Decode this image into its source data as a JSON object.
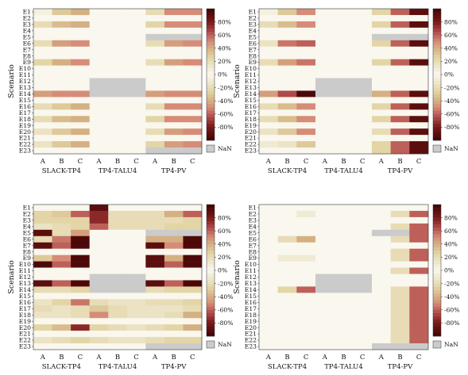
{
  "chart_data": [
    {
      "type": "heatmap",
      "ylabel": "Scenario",
      "rows": [
        "E1",
        "E2",
        "E3",
        "E4",
        "E5",
        "E6",
        "E7",
        "E8",
        "E9",
        "E10",
        "E11",
        "E12",
        "E13",
        "E14",
        "E15",
        "E16",
        "E17",
        "E18",
        "E19",
        "E20",
        "E21",
        "E22",
        "E23"
      ],
      "columns": [
        "A",
        "B",
        "C",
        "A",
        "B",
        "C",
        "A",
        "B",
        "C"
      ],
      "groups": [
        "SLACK-TP4",
        "TP4-TALU4",
        "TP4-PV"
      ],
      "colorbar": {
        "ticks": [
          "80%",
          "60%",
          "40%",
          "20%",
          "0%",
          "-20%",
          "-40%",
          "-60%",
          "-80%"
        ],
        "nan_label": "NaN",
        "range": [
          -100,
          100
        ]
      },
      "values": [
        [
          5,
          30,
          40,
          0,
          0,
          0,
          20,
          50,
          50
        ],
        [
          0,
          0,
          0,
          0,
          0,
          0,
          0,
          0,
          0
        ],
        [
          20,
          35,
          40,
          0,
          0,
          0,
          25,
          50,
          50
        ],
        [
          0,
          0,
          0,
          0,
          0,
          0,
          0,
          0,
          0
        ],
        [
          0,
          0,
          0,
          0,
          0,
          0,
          null,
          null,
          null
        ],
        [
          20,
          45,
          50,
          0,
          0,
          0,
          20,
          45,
          50
        ],
        [
          0,
          0,
          0,
          0,
          0,
          0,
          0,
          0,
          0
        ],
        [
          0,
          0,
          0,
          0,
          0,
          0,
          0,
          0,
          0
        ],
        [
          25,
          40,
          50,
          0,
          0,
          0,
          20,
          45,
          50
        ],
        [
          0,
          0,
          0,
          0,
          0,
          0,
          0,
          0,
          0
        ],
        [
          0,
          0,
          0,
          0,
          0,
          0,
          0,
          0,
          0
        ],
        [
          0,
          0,
          0,
          null,
          null,
          null,
          0,
          0,
          0
        ],
        [
          0,
          0,
          0,
          null,
          null,
          null,
          0,
          0,
          0
        ],
        [
          45,
          50,
          50,
          null,
          null,
          null,
          45,
          50,
          50
        ],
        [
          0,
          0,
          0,
          0,
          0,
          0,
          0,
          0,
          0
        ],
        [
          20,
          30,
          40,
          0,
          0,
          0,
          20,
          50,
          50
        ],
        [
          0,
          0,
          0,
          0,
          0,
          0,
          0,
          0,
          0
        ],
        [
          20,
          35,
          40,
          0,
          0,
          0,
          25,
          50,
          50
        ],
        [
          0,
          0,
          0,
          0,
          0,
          0,
          0,
          0,
          0
        ],
        [
          15,
          30,
          40,
          0,
          0,
          0,
          20,
          45,
          50
        ],
        [
          0,
          0,
          0,
          0,
          0,
          0,
          0,
          0,
          0
        ],
        [
          15,
          30,
          40,
          0,
          0,
          0,
          25,
          45,
          50
        ],
        [
          0,
          0,
          0,
          0,
          0,
          0,
          null,
          null,
          null
        ]
      ]
    },
    {
      "type": "heatmap",
      "ylabel": "Scenario",
      "rows": [
        "E1",
        "E2",
        "E3",
        "E4",
        "E5",
        "E6",
        "E7",
        "E8",
        "E9",
        "E10",
        "E11",
        "E12",
        "E13",
        "E14",
        "E15",
        "E16",
        "E17",
        "E18",
        "E19",
        "E20",
        "E21",
        "E22",
        "E23"
      ],
      "columns": [
        "A",
        "B",
        "C",
        "A",
        "B",
        "C",
        "A",
        "B",
        "C"
      ],
      "groups": [
        "SLACK-TP4",
        "TP4-TALU4",
        "TP4-PV"
      ],
      "colorbar": {
        "ticks": [
          "80%",
          "60%",
          "40%",
          "20%",
          "0%",
          "-20%",
          "-40%",
          "-60%",
          "-80%"
        ],
        "nan_label": "NaN",
        "range": [
          -100,
          100
        ]
      },
      "values": [
        [
          5,
          30,
          50,
          0,
          0,
          0,
          25,
          60,
          90
        ],
        [
          0,
          0,
          0,
          0,
          0,
          0,
          0,
          0,
          0
        ],
        [
          20,
          35,
          50,
          0,
          0,
          0,
          25,
          60,
          90
        ],
        [
          0,
          0,
          0,
          0,
          0,
          0,
          0,
          0,
          0
        ],
        [
          0,
          0,
          0,
          0,
          0,
          0,
          null,
          null,
          null
        ],
        [
          15,
          55,
          60,
          0,
          0,
          0,
          25,
          60,
          90
        ],
        [
          0,
          0,
          0,
          0,
          0,
          0,
          0,
          0,
          0
        ],
        [
          0,
          0,
          0,
          0,
          0,
          0,
          0,
          0,
          0
        ],
        [
          20,
          45,
          55,
          0,
          0,
          0,
          25,
          60,
          90
        ],
        [
          0,
          0,
          0,
          0,
          0,
          0,
          0,
          0,
          0
        ],
        [
          0,
          0,
          0,
          0,
          0,
          0,
          0,
          0,
          0
        ],
        [
          0,
          0,
          0,
          null,
          null,
          null,
          0,
          0,
          0
        ],
        [
          0,
          0,
          0,
          null,
          null,
          null,
          0,
          0,
          0
        ],
        [
          45,
          65,
          95,
          null,
          null,
          null,
          40,
          60,
          90
        ],
        [
          0,
          0,
          0,
          0,
          0,
          0,
          0,
          0,
          0
        ],
        [
          20,
          35,
          50,
          0,
          0,
          0,
          25,
          60,
          90
        ],
        [
          0,
          0,
          0,
          0,
          0,
          0,
          0,
          0,
          0
        ],
        [
          20,
          35,
          50,
          0,
          0,
          0,
          25,
          60,
          90
        ],
        [
          0,
          0,
          0,
          0,
          0,
          0,
          0,
          0,
          0
        ],
        [
          15,
          30,
          50,
          0,
          0,
          0,
          20,
          60,
          90
        ],
        [
          0,
          0,
          0,
          0,
          0,
          0,
          0,
          0,
          0
        ],
        [
          10,
          15,
          30,
          0,
          0,
          0,
          25,
          60,
          90
        ],
        [
          0,
          0,
          0,
          0,
          0,
          0,
          25,
          60,
          90
        ]
      ]
    },
    {
      "type": "heatmap",
      "ylabel": "Scenario",
      "rows": [
        "E1",
        "E2",
        "E3",
        "E4",
        "E5",
        "E6",
        "E7",
        "E8",
        "E9",
        "E10",
        "E11",
        "E12",
        "E13",
        "E14",
        "E15",
        "E16",
        "E17",
        "E18",
        "E19",
        "E20",
        "E21",
        "E22",
        "E23"
      ],
      "columns": [
        "A",
        "B",
        "C",
        "A",
        "B",
        "C",
        "A",
        "B",
        "C"
      ],
      "groups": [
        "SLACK-TP4",
        "TP4-TALU4",
        "TP4-PV"
      ],
      "colorbar": {
        "ticks": [
          "80%",
          "60%",
          "40%",
          "20%",
          "0%",
          "-20%",
          "-40%",
          "-60%",
          "-80%"
        ],
        "nan_label": "NaN",
        "range": [
          -100,
          100
        ]
      },
      "values": [
        [
          0,
          0,
          0,
          90,
          0,
          0,
          0,
          0,
          0
        ],
        [
          25,
          30,
          60,
          75,
          20,
          20,
          20,
          40,
          60
        ],
        [
          25,
          25,
          25,
          75,
          20,
          20,
          20,
          20,
          25
        ],
        [
          15,
          20,
          25,
          60,
          20,
          20,
          20,
          25,
          25
        ],
        [
          90,
          20,
          45,
          0,
          0,
          0,
          null,
          null,
          null
        ],
        [
          20,
          55,
          95,
          0,
          0,
          0,
          40,
          40,
          95
        ],
        [
          90,
          60,
          95,
          0,
          0,
          0,
          90,
          50,
          95
        ],
        [
          0,
          0,
          0,
          0,
          0,
          0,
          0,
          0,
          0
        ],
        [
          30,
          50,
          95,
          0,
          0,
          0,
          90,
          40,
          95
        ],
        [
          95,
          60,
          95,
          0,
          0,
          0,
          90,
          60,
          95
        ],
        [
          0,
          0,
          0,
          0,
          0,
          0,
          0,
          0,
          0
        ],
        [
          0,
          0,
          0,
          null,
          null,
          null,
          0,
          0,
          0
        ],
        [
          90,
          60,
          95,
          null,
          null,
          null,
          90,
          60,
          95
        ],
        [
          20,
          20,
          25,
          null,
          null,
          null,
          20,
          25,
          25
        ],
        [
          0,
          0,
          0,
          0,
          0,
          0,
          0,
          0,
          0
        ],
        [
          15,
          25,
          55,
          20,
          15,
          15,
          20,
          20,
          25
        ],
        [
          20,
          15,
          20,
          30,
          20,
          15,
          15,
          15,
          20
        ],
        [
          15,
          15,
          20,
          50,
          20,
          15,
          15,
          20,
          40
        ],
        [
          0,
          0,
          0,
          0,
          0,
          0,
          0,
          0,
          0
        ],
        [
          25,
          35,
          75,
          25,
          20,
          15,
          20,
          25,
          40
        ],
        [
          0,
          0,
          0,
          0,
          0,
          0,
          0,
          0,
          0
        ],
        [
          15,
          20,
          25,
          20,
          15,
          15,
          20,
          25,
          25
        ],
        [
          0,
          0,
          0,
          0,
          0,
          0,
          null,
          null,
          null
        ]
      ]
    },
    {
      "type": "heatmap",
      "ylabel": "Scenario",
      "rows": [
        "E1",
        "E2",
        "E3",
        "E4",
        "E5",
        "E6",
        "E7",
        "E8",
        "E9",
        "E10",
        "E11",
        "E12",
        "E13",
        "E14",
        "E15",
        "E16",
        "E17",
        "E18",
        "E19",
        "E20",
        "E21",
        "E22",
        "E23"
      ],
      "columns": [
        "A",
        "B",
        "C",
        "A",
        "B",
        "C",
        "A",
        "B",
        "C"
      ],
      "groups": [
        "SLACK-TP4",
        "TP4-TALU4",
        "TP4-PV"
      ],
      "colorbar": {
        "ticks": [
          "80%",
          "60%",
          "40%",
          "20%",
          "0%",
          "-20%",
          "-40%",
          "-60%",
          "-80%"
        ],
        "nan_label": "NaN",
        "range": [
          -100,
          100
        ]
      },
      "values": [
        [
          0,
          0,
          0,
          0,
          0,
          0,
          0,
          0,
          0
        ],
        [
          0,
          0,
          10,
          0,
          0,
          0,
          0,
          20,
          60
        ],
        [
          0,
          0,
          0,
          0,
          0,
          0,
          0,
          0,
          0
        ],
        [
          0,
          0,
          0,
          0,
          0,
          0,
          0,
          20,
          60
        ],
        [
          0,
          0,
          0,
          0,
          0,
          0,
          null,
          null,
          60
        ],
        [
          0,
          20,
          40,
          0,
          0,
          0,
          0,
          20,
          60
        ],
        [
          0,
          0,
          0,
          0,
          0,
          0,
          0,
          0,
          0
        ],
        [
          0,
          0,
          0,
          0,
          0,
          0,
          0,
          20,
          60
        ],
        [
          0,
          10,
          10,
          0,
          0,
          0,
          0,
          20,
          60
        ],
        [
          0,
          0,
          0,
          0,
          0,
          0,
          0,
          0,
          0
        ],
        [
          0,
          0,
          0,
          0,
          0,
          0,
          0,
          20,
          60
        ],
        [
          0,
          0,
          0,
          null,
          null,
          null,
          0,
          0,
          0
        ],
        [
          0,
          0,
          0,
          null,
          null,
          null,
          0,
          0,
          0
        ],
        [
          0,
          25,
          60,
          null,
          null,
          null,
          0,
          20,
          60
        ],
        [
          0,
          0,
          0,
          0,
          0,
          0,
          0,
          20,
          60
        ],
        [
          0,
          0,
          0,
          0,
          0,
          0,
          0,
          20,
          60
        ],
        [
          0,
          0,
          0,
          0,
          0,
          0,
          0,
          20,
          60
        ],
        [
          0,
          0,
          0,
          0,
          0,
          0,
          0,
          20,
          60
        ],
        [
          0,
          0,
          0,
          0,
          0,
          0,
          0,
          20,
          60
        ],
        [
          0,
          0,
          0,
          0,
          0,
          0,
          0,
          20,
          60
        ],
        [
          0,
          0,
          0,
          0,
          0,
          0,
          0,
          20,
          60
        ],
        [
          0,
          0,
          0,
          0,
          0,
          0,
          0,
          20,
          60
        ],
        [
          0,
          0,
          0,
          0,
          0,
          0,
          null,
          null,
          null
        ]
      ]
    }
  ]
}
